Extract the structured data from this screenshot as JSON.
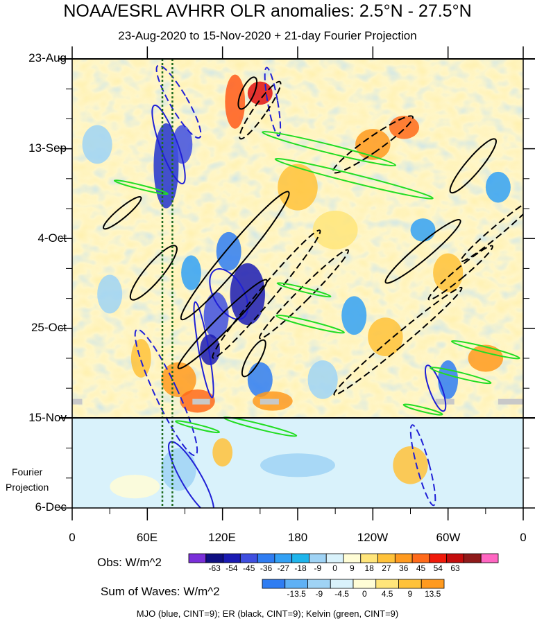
{
  "title": "NOAA/ESRL AVHRR OLR anomalies: 2.5°N - 27.5°N",
  "subtitle": "23-Aug-2020 to 15-Nov-2020 + 21-day Fourier Projection",
  "projection_label": [
    "Fourier",
    "Projection"
  ],
  "footer_note": "MJO (blue, CINT=9); ER (black, CINT=9); Kelvin (green, CINT=9)",
  "colors": {
    "mjo": "#1f1fd6",
    "er": "#000000",
    "kelvin": "#22dd22",
    "reference_lines": "#1e6b1e"
  },
  "chart_data": {
    "type": "heatmap",
    "title": "NOAA/ESRL AVHRR OLR anomalies: 2.5°N - 27.5°N",
    "subtitle": "23-Aug-2020 to 15-Nov-2020 + 21-day Fourier Projection",
    "x_axis": {
      "ticks": [
        "0",
        "60E",
        "120E",
        "180",
        "120W",
        "60W",
        "0"
      ],
      "tick_values_deg": [
        0,
        60,
        120,
        180,
        240,
        300,
        360
      ],
      "range": [
        0,
        360
      ]
    },
    "y_axis": {
      "ticks": [
        "23-Aug",
        "13-Sep",
        "4-Oct",
        "25-Oct",
        "15-Nov",
        "6-Dec"
      ],
      "tick_day_offsets": [
        0,
        21,
        42,
        63,
        84,
        105
      ],
      "range_days": [
        0,
        105
      ],
      "projection_start": "15-Nov"
    },
    "reference_lines_lon": [
      72,
      80
    ],
    "obs_colorbar": {
      "title": "Obs: W/m^2",
      "levels": [
        "-63",
        "-54",
        "-45",
        "-36",
        "-27",
        "-18",
        "-9",
        "0",
        "9",
        "18",
        "27",
        "36",
        "45",
        "54",
        "63"
      ],
      "colors": [
        "#7a2fd9",
        "#0f0f82",
        "#1b1bb3",
        "#3f4fe0",
        "#2f7df2",
        "#33a1f5",
        "#1fb5ec",
        "#9fd3f5",
        "#d9f2fb",
        "#fffdd6",
        "#ffe57a",
        "#ffc23a",
        "#ff9a1f",
        "#ff6a1a",
        "#f01a0a",
        "#c40d0d",
        "#8f1a1a",
        "#ff66c2"
      ]
    },
    "waves_colorbar": {
      "title": "Sum of Waves: W/m^2",
      "levels": [
        "-13.5",
        "-9",
        "-4.5",
        "0",
        "4.5",
        "9",
        "13.5"
      ],
      "colors": [
        "#2f7df2",
        "#5fb1f5",
        "#9fd3f5",
        "#d9f2fb",
        "#fffdd6",
        "#ffe57a",
        "#ffc23a",
        "#ff9a1f"
      ]
    },
    "legend": "MJO (blue, CINT=9); ER (black, CINT=9); Kelvin (green, CINT=9)"
  }
}
